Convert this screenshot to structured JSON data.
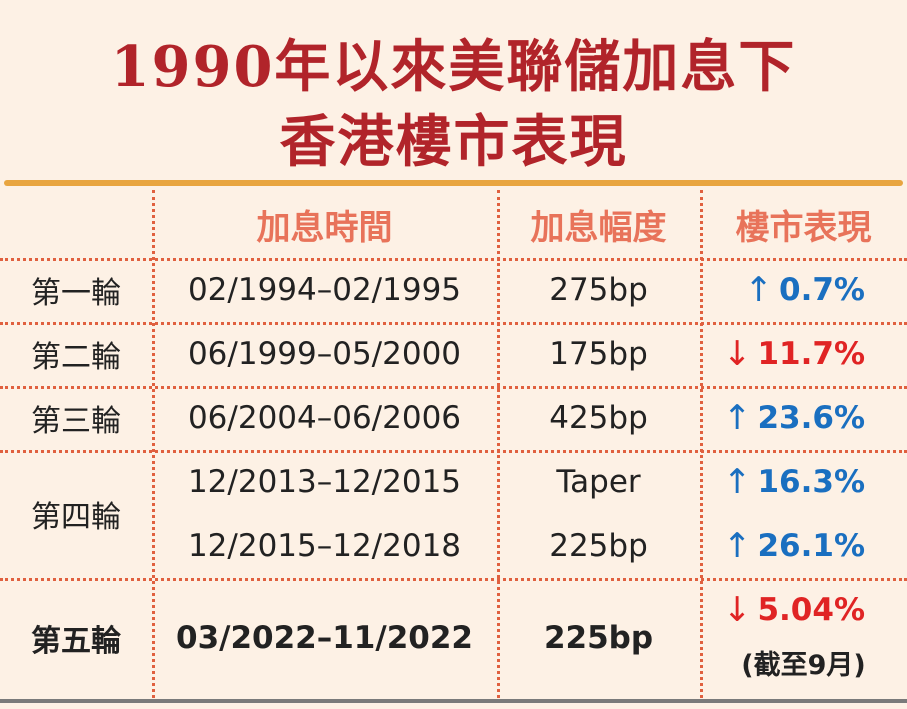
{
  "title": [
    "1990年以來美聯儲加息下",
    "香港樓市表現"
  ],
  "table": {
    "header": [
      "加息時間",
      "加息幅度",
      "樓市表現"
    ],
    "rows": [
      {
        "round": "第一輪",
        "periods": [
          {
            "time": "02/1994–02/1995",
            "rate": "275bp",
            "arrow": "↑",
            "change": "0.7%",
            "color": "#1a6fc0"
          }
        ]
      },
      {
        "round": "第二輪",
        "periods": [
          {
            "time": "06/1999–05/2000",
            "rate": "175bp",
            "arrow": "↓",
            "change": "11.7%",
            "color": "#e02424"
          }
        ]
      },
      {
        "round": "第三輪",
        "periods": [
          {
            "time": "06/2004–06/2006",
            "rate": "425bp",
            "arrow": "↑",
            "change": "23.6%",
            "color": "#1a6fc0"
          }
        ]
      },
      {
        "round": "第四輪",
        "periods": [
          {
            "time": "12/2013–12/2015",
            "rate": "Taper",
            "arrow": "↑",
            "change": "16.3%",
            "color": "#1a6fc0"
          },
          {
            "time": "12/2015–12/2018",
            "rate": "225bp",
            "arrow": "↑",
            "change": "26.1%",
            "color": "#1a6fc0"
          }
        ]
      },
      {
        "round": "第五輪",
        "bold": true,
        "note": "(截至9月)",
        "periods": [
          {
            "time": "03/2022–11/2022",
            "rate": "225bp",
            "arrow": "↓",
            "change": "5.04%",
            "color": "#e02424"
          }
        ]
      }
    ]
  }
}
